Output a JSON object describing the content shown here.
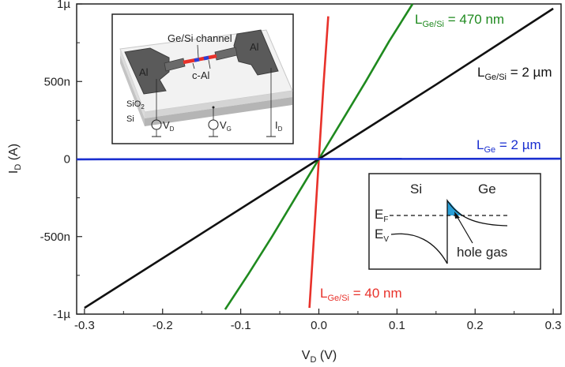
{
  "chart_data": {
    "type": "line",
    "xlabel": {
      "main": "V",
      "sub": "D",
      "unit": " (V)"
    },
    "ylabel": {
      "main": "I",
      "sub": "D",
      "unit": " (A)"
    },
    "xlim": [
      -0.31,
      0.31
    ],
    "ylim": [
      -1e-06,
      1e-06
    ],
    "x_ticks": [
      {
        "value": -0.3,
        "label": "-0.3"
      },
      {
        "value": -0.2,
        "label": "-0.2"
      },
      {
        "value": -0.1,
        "label": "-0.1"
      },
      {
        "value": 0.0,
        "label": "0.0"
      },
      {
        "value": 0.1,
        "label": "0.1"
      },
      {
        "value": 0.2,
        "label": "0.2"
      },
      {
        "value": 0.3,
        "label": "0.3"
      }
    ],
    "y_ticks": [
      {
        "value": 1e-06,
        "label": "1µ"
      },
      {
        "value": 5e-07,
        "label": "500n"
      },
      {
        "value": 0,
        "label": "0"
      },
      {
        "value": -5e-07,
        "label": "-500n"
      },
      {
        "value": -1e-06,
        "label": "-1µ"
      }
    ],
    "series": [
      {
        "label_main": "L",
        "label_sub": "Ge/Si",
        "label_rest": " = 40 nm",
        "color": "#e8312a",
        "x": [
          -0.012,
          -0.006,
          0,
          0.006,
          0.012
        ],
        "y": [
          -9.6e-07,
          -4.8e-07,
          0,
          4.8e-07,
          9.2e-07
        ]
      },
      {
        "label_main": "L",
        "label_sub": "Ge/Si",
        "label_rest": " = 470 nm",
        "color": "#1f8a1f",
        "x": [
          -0.12,
          -0.09,
          -0.06,
          -0.03,
          0,
          0.03,
          0.06,
          0.09,
          0.12
        ],
        "y": [
          -9.7e-07,
          -7.4e-07,
          -5e-07,
          -2.5e-07,
          0,
          2.5e-07,
          5e-07,
          7.6e-07,
          1e-06
        ]
      },
      {
        "label_main": "L",
        "label_sub": "Ge/Si",
        "label_rest": " = 2 µm",
        "color": "#111111",
        "x": [
          -0.3,
          -0.15,
          0,
          0.15,
          0.3
        ],
        "y": [
          -9.6e-07,
          -4.8e-07,
          0,
          4.8e-07,
          9.7e-07
        ]
      },
      {
        "label_main": "L",
        "label_sub": "Ge",
        "label_rest": " = 2 µm",
        "color": "#1a2fd0",
        "x": [
          -0.31,
          0.31
        ],
        "y": [
          -2e-09,
          2e-09
        ]
      }
    ],
    "inset_device": {
      "channel_label": "Ge/Si channel",
      "contact_mid_label": "c-Al",
      "left_contact": "Al",
      "right_contact": "Al",
      "oxide_main": "SiO",
      "oxide_sub": "2",
      "substrate": "Si",
      "vd_main": "V",
      "vd_sub": "D",
      "vg_main": "V",
      "vg_sub": "G",
      "id_main": "I",
      "id_sub": "D"
    },
    "inset_band": {
      "left_label": "Si",
      "right_label": "Ge",
      "ef_main": "E",
      "ef_sub": "F",
      "ev_main": "E",
      "ev_sub": "V",
      "hole_label": "hole gas",
      "hole_color": "#2aa0d8"
    }
  }
}
